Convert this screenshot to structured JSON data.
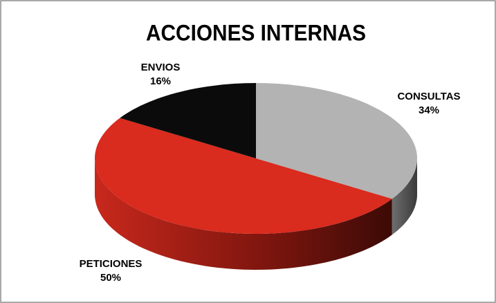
{
  "chart_data": {
    "type": "pie",
    "title": "ACCIONES INTERNAS",
    "categories": [
      "CONSULTAS",
      "PETICIONES",
      "ENVIOS"
    ],
    "values": [
      34,
      50,
      16
    ],
    "value_labels": [
      "34%",
      "50%",
      "16%"
    ],
    "colors": [
      "#b3b3b3",
      "#d92b1e",
      "#0b0b0b"
    ]
  }
}
